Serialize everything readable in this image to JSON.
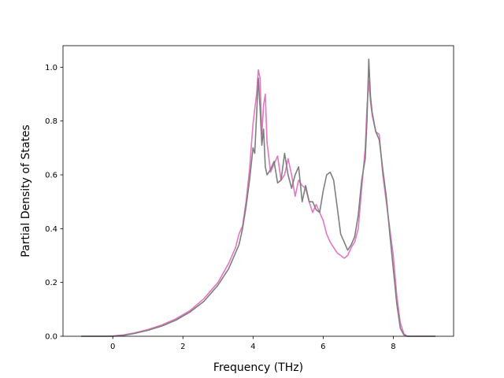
{
  "chart_data": {
    "type": "line",
    "xlabel": "Frequency (THz)",
    "ylabel": "Partial Density of States",
    "xlim": [
      -1.42,
      9.72
    ],
    "ylim": [
      0.0,
      1.08
    ],
    "xticks": [
      0,
      2,
      4,
      6,
      8
    ],
    "yticks": [
      0.0,
      0.2,
      0.4,
      0.6,
      0.8,
      1.0
    ],
    "xtick_labels": [
      "0",
      "2",
      "4",
      "6",
      "8"
    ],
    "ytick_labels": [
      "0.0",
      "0.2",
      "0.4",
      "0.6",
      "0.8",
      "1.0"
    ],
    "grid": false,
    "legend": "none",
    "series": [
      {
        "color": "#e377c2",
        "x": [
          -0.9,
          -0.2,
          0.0,
          0.3,
          0.6,
          1.0,
          1.4,
          1.8,
          2.2,
          2.6,
          3.0,
          3.3,
          3.5,
          3.6,
          3.7,
          3.8,
          3.9,
          4.0,
          4.1,
          4.15,
          4.2,
          4.25,
          4.3,
          4.35,
          4.4,
          4.5,
          4.6,
          4.7,
          4.8,
          4.9,
          5.0,
          5.1,
          5.2,
          5.3,
          5.4,
          5.5,
          5.6,
          5.7,
          5.8,
          5.9,
          6.0,
          6.1,
          6.2,
          6.3,
          6.4,
          6.5,
          6.6,
          6.7,
          6.8,
          6.9,
          7.0,
          7.1,
          7.2,
          7.25,
          7.3,
          7.35,
          7.4,
          7.5,
          7.6,
          7.7,
          7.8,
          7.9,
          8.0,
          8.1,
          8.2,
          8.3,
          8.4,
          8.6,
          9.2
        ],
        "y": [
          0.0,
          0.0,
          0.001,
          0.005,
          0.012,
          0.025,
          0.042,
          0.065,
          0.095,
          0.14,
          0.2,
          0.27,
          0.33,
          0.38,
          0.41,
          0.5,
          0.62,
          0.79,
          0.9,
          0.99,
          0.96,
          0.75,
          0.86,
          0.9,
          0.72,
          0.61,
          0.64,
          0.67,
          0.58,
          0.6,
          0.66,
          0.6,
          0.52,
          0.58,
          0.56,
          0.55,
          0.5,
          0.46,
          0.49,
          0.46,
          0.43,
          0.38,
          0.35,
          0.33,
          0.31,
          0.3,
          0.29,
          0.3,
          0.33,
          0.35,
          0.4,
          0.55,
          0.7,
          0.85,
          0.95,
          0.87,
          0.82,
          0.76,
          0.75,
          0.6,
          0.5,
          0.4,
          0.3,
          0.15,
          0.05,
          0.01,
          0.0,
          0.0,
          0.0
        ]
      },
      {
        "color": "#7f7f7f",
        "x": [
          -0.9,
          -0.2,
          0.0,
          0.3,
          0.6,
          1.0,
          1.4,
          1.8,
          2.2,
          2.6,
          3.0,
          3.3,
          3.5,
          3.6,
          3.7,
          3.8,
          3.9,
          4.0,
          4.05,
          4.1,
          4.15,
          4.2,
          4.25,
          4.3,
          4.35,
          4.4,
          4.5,
          4.6,
          4.7,
          4.8,
          4.9,
          5.0,
          5.1,
          5.2,
          5.3,
          5.4,
          5.5,
          5.6,
          5.7,
          5.8,
          5.9,
          6.0,
          6.1,
          6.2,
          6.3,
          6.4,
          6.5,
          6.6,
          6.7,
          6.8,
          6.9,
          7.0,
          7.1,
          7.2,
          7.25,
          7.3,
          7.35,
          7.4,
          7.5,
          7.6,
          7.7,
          7.8,
          7.9,
          8.0,
          8.1,
          8.2,
          8.3,
          8.4,
          8.6,
          9.2
        ],
        "y": [
          0.0,
          0.0,
          0.0,
          0.003,
          0.01,
          0.022,
          0.038,
          0.06,
          0.09,
          0.13,
          0.19,
          0.25,
          0.31,
          0.34,
          0.4,
          0.48,
          0.58,
          0.7,
          0.68,
          0.82,
          0.96,
          0.85,
          0.71,
          0.77,
          0.63,
          0.6,
          0.62,
          0.65,
          0.57,
          0.58,
          0.68,
          0.6,
          0.55,
          0.6,
          0.63,
          0.5,
          0.56,
          0.5,
          0.5,
          0.47,
          0.46,
          0.54,
          0.6,
          0.61,
          0.58,
          0.48,
          0.38,
          0.35,
          0.32,
          0.34,
          0.37,
          0.45,
          0.58,
          0.66,
          0.8,
          1.03,
          0.89,
          0.83,
          0.76,
          0.73,
          0.62,
          0.52,
          0.38,
          0.25,
          0.12,
          0.03,
          0.005,
          0.0,
          0.0,
          0.0
        ]
      }
    ]
  }
}
